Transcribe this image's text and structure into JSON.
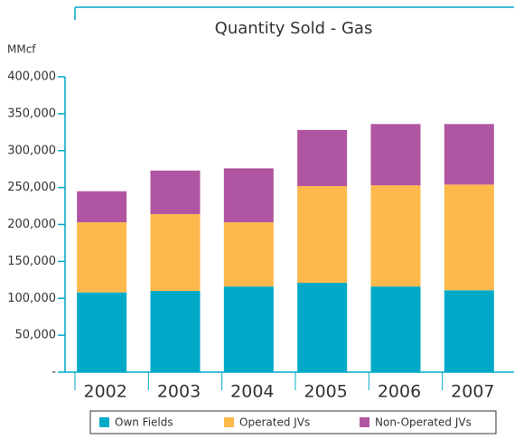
{
  "chart_data": {
    "type": "stacked_bar",
    "title": "Quantity Sold - Gas",
    "y_label": "MMcf",
    "categories": [
      "2002",
      "2003",
      "2004",
      "2005",
      "2006",
      "2007"
    ],
    "series": [
      {
        "name": "Own Fields",
        "color": "#00a9c8",
        "values": [
          108000,
          110000,
          116000,
          121000,
          116000,
          111000
        ]
      },
      {
        "name": "Operated JVs",
        "color": "#fdb94b",
        "values": [
          95000,
          104000,
          87000,
          131000,
          137000,
          143000
        ]
      },
      {
        "name": "Non-Operated JVs",
        "color": "#b055a1",
        "values": [
          42000,
          59000,
          73000,
          76000,
          83000,
          82000
        ]
      }
    ],
    "ylim": [
      0,
      400000
    ],
    "yticks": [
      {
        "value": 0,
        "label": "-"
      },
      {
        "value": 50000,
        "label": "50,000"
      },
      {
        "value": 100000,
        "label": "100,000"
      },
      {
        "value": 150000,
        "label": "150,000"
      },
      {
        "value": 200000,
        "label": "200,000"
      },
      {
        "value": 250000,
        "label": "250,000"
      },
      {
        "value": 300000,
        "label": "300,000"
      },
      {
        "value": 350000,
        "label": "350,000"
      },
      {
        "value": 400000,
        "label": "400,000"
      }
    ],
    "legend": "bottom"
  }
}
